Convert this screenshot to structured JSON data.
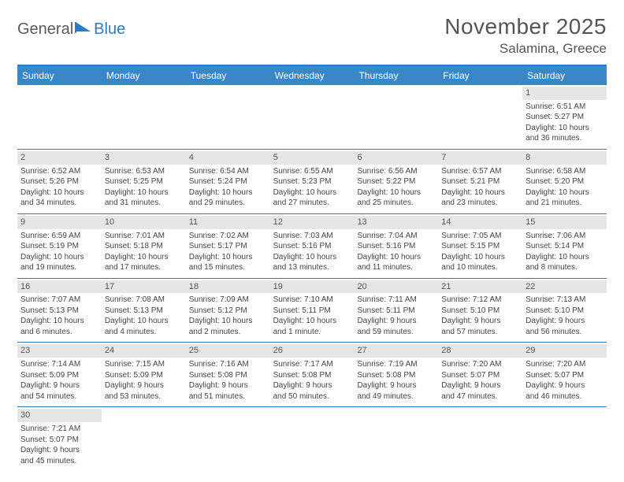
{
  "logo": {
    "text1": "General",
    "text2": "Blue"
  },
  "title": "November 2025",
  "location": "Salamina, Greece",
  "colors": {
    "header_bg": "#3a87c8",
    "accent": "#2a7cc4",
    "daynum_bg": "#e6e6e6",
    "text": "#444444"
  },
  "dayHeaders": [
    "Sunday",
    "Monday",
    "Tuesday",
    "Wednesday",
    "Thursday",
    "Friday",
    "Saturday"
  ],
  "weeks": [
    [
      null,
      null,
      null,
      null,
      null,
      null,
      {
        "n": "1",
        "sr": "Sunrise: 6:51 AM",
        "ss": "Sunset: 5:27 PM",
        "d1": "Daylight: 10 hours",
        "d2": "and 36 minutes."
      }
    ],
    [
      {
        "n": "2",
        "sr": "Sunrise: 6:52 AM",
        "ss": "Sunset: 5:26 PM",
        "d1": "Daylight: 10 hours",
        "d2": "and 34 minutes."
      },
      {
        "n": "3",
        "sr": "Sunrise: 6:53 AM",
        "ss": "Sunset: 5:25 PM",
        "d1": "Daylight: 10 hours",
        "d2": "and 31 minutes."
      },
      {
        "n": "4",
        "sr": "Sunrise: 6:54 AM",
        "ss": "Sunset: 5:24 PM",
        "d1": "Daylight: 10 hours",
        "d2": "and 29 minutes."
      },
      {
        "n": "5",
        "sr": "Sunrise: 6:55 AM",
        "ss": "Sunset: 5:23 PM",
        "d1": "Daylight: 10 hours",
        "d2": "and 27 minutes."
      },
      {
        "n": "6",
        "sr": "Sunrise: 6:56 AM",
        "ss": "Sunset: 5:22 PM",
        "d1": "Daylight: 10 hours",
        "d2": "and 25 minutes."
      },
      {
        "n": "7",
        "sr": "Sunrise: 6:57 AM",
        "ss": "Sunset: 5:21 PM",
        "d1": "Daylight: 10 hours",
        "d2": "and 23 minutes."
      },
      {
        "n": "8",
        "sr": "Sunrise: 6:58 AM",
        "ss": "Sunset: 5:20 PM",
        "d1": "Daylight: 10 hours",
        "d2": "and 21 minutes."
      }
    ],
    [
      {
        "n": "9",
        "sr": "Sunrise: 6:59 AM",
        "ss": "Sunset: 5:19 PM",
        "d1": "Daylight: 10 hours",
        "d2": "and 19 minutes."
      },
      {
        "n": "10",
        "sr": "Sunrise: 7:01 AM",
        "ss": "Sunset: 5:18 PM",
        "d1": "Daylight: 10 hours",
        "d2": "and 17 minutes."
      },
      {
        "n": "11",
        "sr": "Sunrise: 7:02 AM",
        "ss": "Sunset: 5:17 PM",
        "d1": "Daylight: 10 hours",
        "d2": "and 15 minutes."
      },
      {
        "n": "12",
        "sr": "Sunrise: 7:03 AM",
        "ss": "Sunset: 5:16 PM",
        "d1": "Daylight: 10 hours",
        "d2": "and 13 minutes."
      },
      {
        "n": "13",
        "sr": "Sunrise: 7:04 AM",
        "ss": "Sunset: 5:16 PM",
        "d1": "Daylight: 10 hours",
        "d2": "and 11 minutes."
      },
      {
        "n": "14",
        "sr": "Sunrise: 7:05 AM",
        "ss": "Sunset: 5:15 PM",
        "d1": "Daylight: 10 hours",
        "d2": "and 10 minutes."
      },
      {
        "n": "15",
        "sr": "Sunrise: 7:06 AM",
        "ss": "Sunset: 5:14 PM",
        "d1": "Daylight: 10 hours",
        "d2": "and 8 minutes."
      }
    ],
    [
      {
        "n": "16",
        "sr": "Sunrise: 7:07 AM",
        "ss": "Sunset: 5:13 PM",
        "d1": "Daylight: 10 hours",
        "d2": "and 6 minutes."
      },
      {
        "n": "17",
        "sr": "Sunrise: 7:08 AM",
        "ss": "Sunset: 5:13 PM",
        "d1": "Daylight: 10 hours",
        "d2": "and 4 minutes."
      },
      {
        "n": "18",
        "sr": "Sunrise: 7:09 AM",
        "ss": "Sunset: 5:12 PM",
        "d1": "Daylight: 10 hours",
        "d2": "and 2 minutes."
      },
      {
        "n": "19",
        "sr": "Sunrise: 7:10 AM",
        "ss": "Sunset: 5:11 PM",
        "d1": "Daylight: 10 hours",
        "d2": "and 1 minute."
      },
      {
        "n": "20",
        "sr": "Sunrise: 7:11 AM",
        "ss": "Sunset: 5:11 PM",
        "d1": "Daylight: 9 hours",
        "d2": "and 59 minutes."
      },
      {
        "n": "21",
        "sr": "Sunrise: 7:12 AM",
        "ss": "Sunset: 5:10 PM",
        "d1": "Daylight: 9 hours",
        "d2": "and 57 minutes."
      },
      {
        "n": "22",
        "sr": "Sunrise: 7:13 AM",
        "ss": "Sunset: 5:10 PM",
        "d1": "Daylight: 9 hours",
        "d2": "and 56 minutes."
      }
    ],
    [
      {
        "n": "23",
        "sr": "Sunrise: 7:14 AM",
        "ss": "Sunset: 5:09 PM",
        "d1": "Daylight: 9 hours",
        "d2": "and 54 minutes."
      },
      {
        "n": "24",
        "sr": "Sunrise: 7:15 AM",
        "ss": "Sunset: 5:09 PM",
        "d1": "Daylight: 9 hours",
        "d2": "and 53 minutes."
      },
      {
        "n": "25",
        "sr": "Sunrise: 7:16 AM",
        "ss": "Sunset: 5:08 PM",
        "d1": "Daylight: 9 hours",
        "d2": "and 51 minutes."
      },
      {
        "n": "26",
        "sr": "Sunrise: 7:17 AM",
        "ss": "Sunset: 5:08 PM",
        "d1": "Daylight: 9 hours",
        "d2": "and 50 minutes."
      },
      {
        "n": "27",
        "sr": "Sunrise: 7:19 AM",
        "ss": "Sunset: 5:08 PM",
        "d1": "Daylight: 9 hours",
        "d2": "and 49 minutes."
      },
      {
        "n": "28",
        "sr": "Sunrise: 7:20 AM",
        "ss": "Sunset: 5:07 PM",
        "d1": "Daylight: 9 hours",
        "d2": "and 47 minutes."
      },
      {
        "n": "29",
        "sr": "Sunrise: 7:20 AM",
        "ss": "Sunset: 5:07 PM",
        "d1": "Daylight: 9 hours",
        "d2": "and 46 minutes."
      }
    ],
    [
      {
        "n": "30",
        "sr": "Sunrise: 7:21 AM",
        "ss": "Sunset: 5:07 PM",
        "d1": "Daylight: 9 hours",
        "d2": "and 45 minutes."
      },
      null,
      null,
      null,
      null,
      null,
      null
    ]
  ]
}
